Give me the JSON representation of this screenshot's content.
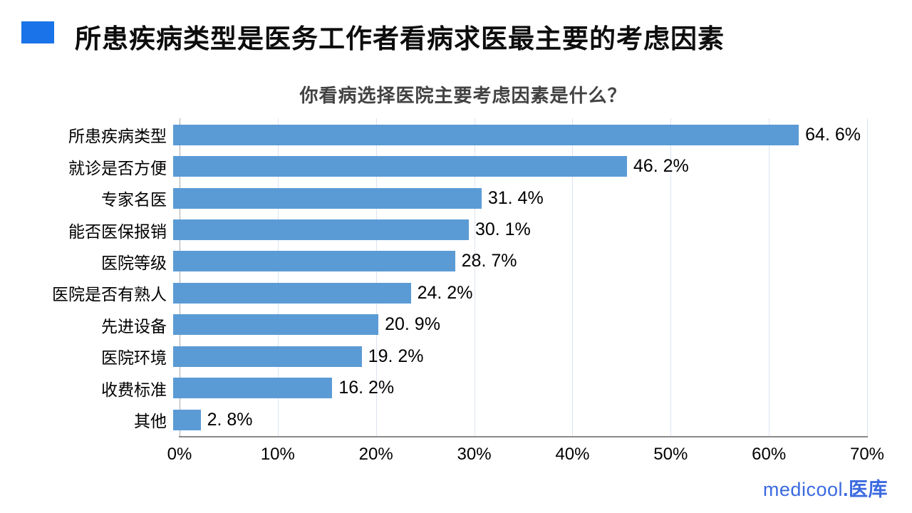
{
  "page": {
    "title": "所患疾病类型是医务工作者看病求医最主要的考虑因素"
  },
  "chart_data": {
    "type": "bar",
    "orientation": "horizontal",
    "title": "你看病选择医院主要考虑因素是什么？",
    "categories": [
      "所患疾病类型",
      "就诊是否方便",
      "专家名医",
      "能否医保报销",
      "医院等级",
      "医院是否有熟人",
      "先进设备",
      "医院环境",
      "收费标准",
      "其他"
    ],
    "values": [
      64.6,
      46.2,
      31.4,
      30.1,
      28.7,
      24.2,
      20.9,
      19.2,
      16.2,
      2.8
    ],
    "value_labels": [
      "64. 6%",
      "46. 2%",
      "31. 4%",
      "30. 1%",
      "28. 7%",
      "24. 2%",
      "20. 9%",
      "19. 2%",
      "16. 2%",
      "2. 8%"
    ],
    "x_ticks": [
      "0%",
      "10%",
      "20%",
      "30%",
      "40%",
      "50%",
      "60%",
      "70%"
    ],
    "xlim": [
      0,
      70
    ],
    "grid": true,
    "bar_color": "#5B9BD5",
    "legend": "none"
  },
  "footer": {
    "logo_latin": "medicool",
    "logo_cjk": ".医库"
  },
  "colors": {
    "title_marker": "#1A73E8",
    "bar": "#5B9BD5",
    "logo": "#3B6AE0",
    "gridline": "#dbe3f1",
    "axis_line": "#8a8a8a"
  }
}
